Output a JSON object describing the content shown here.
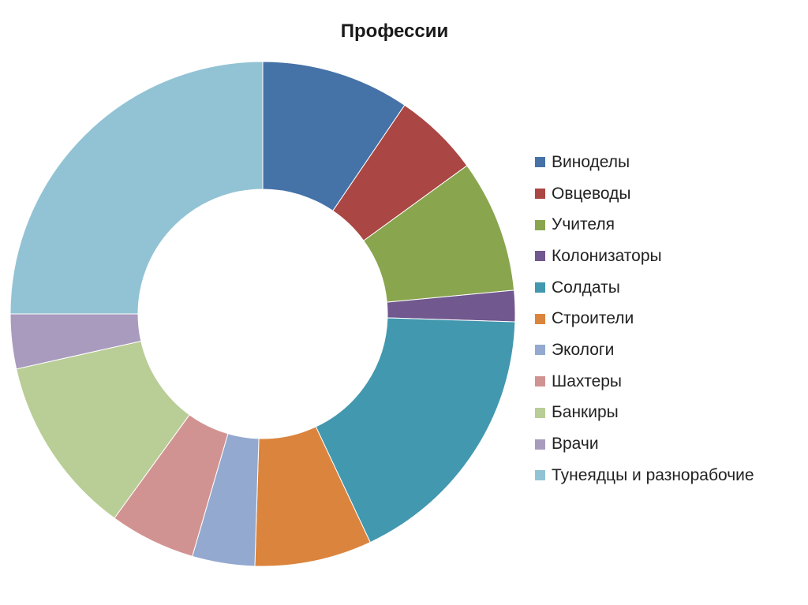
{
  "chart_data": {
    "type": "pie",
    "variant": "donut",
    "title": "Профессии",
    "legend_position": "right",
    "start_angle_deg": 0,
    "direction": "clockwise",
    "slices": [
      {
        "label": "Виноделы",
        "value": 9.5,
        "color": "#4572A7"
      },
      {
        "label": "Овцеводы",
        "value": 5.5,
        "color": "#AA4643"
      },
      {
        "label": "Учителя",
        "value": 8.5,
        "color": "#89A54E"
      },
      {
        "label": "Колонизаторы",
        "value": 2.0,
        "color": "#71588F"
      },
      {
        "label": "Солдаты",
        "value": 17.5,
        "color": "#4198AF"
      },
      {
        "label": "Строители",
        "value": 7.5,
        "color": "#DB843D"
      },
      {
        "label": "Экологи",
        "value": 4.0,
        "color": "#93A9CF"
      },
      {
        "label": "Шахтеры",
        "value": 5.5,
        "color": "#D19392"
      },
      {
        "label": "Банкиры",
        "value": 11.5,
        "color": "#B9CD96"
      },
      {
        "label": "Врачи",
        "value": 3.5,
        "color": "#A99BBD"
      },
      {
        "label": "Тунеядцы и разнорабочие",
        "value": 25.0,
        "color": "#92C3D4"
      }
    ]
  }
}
